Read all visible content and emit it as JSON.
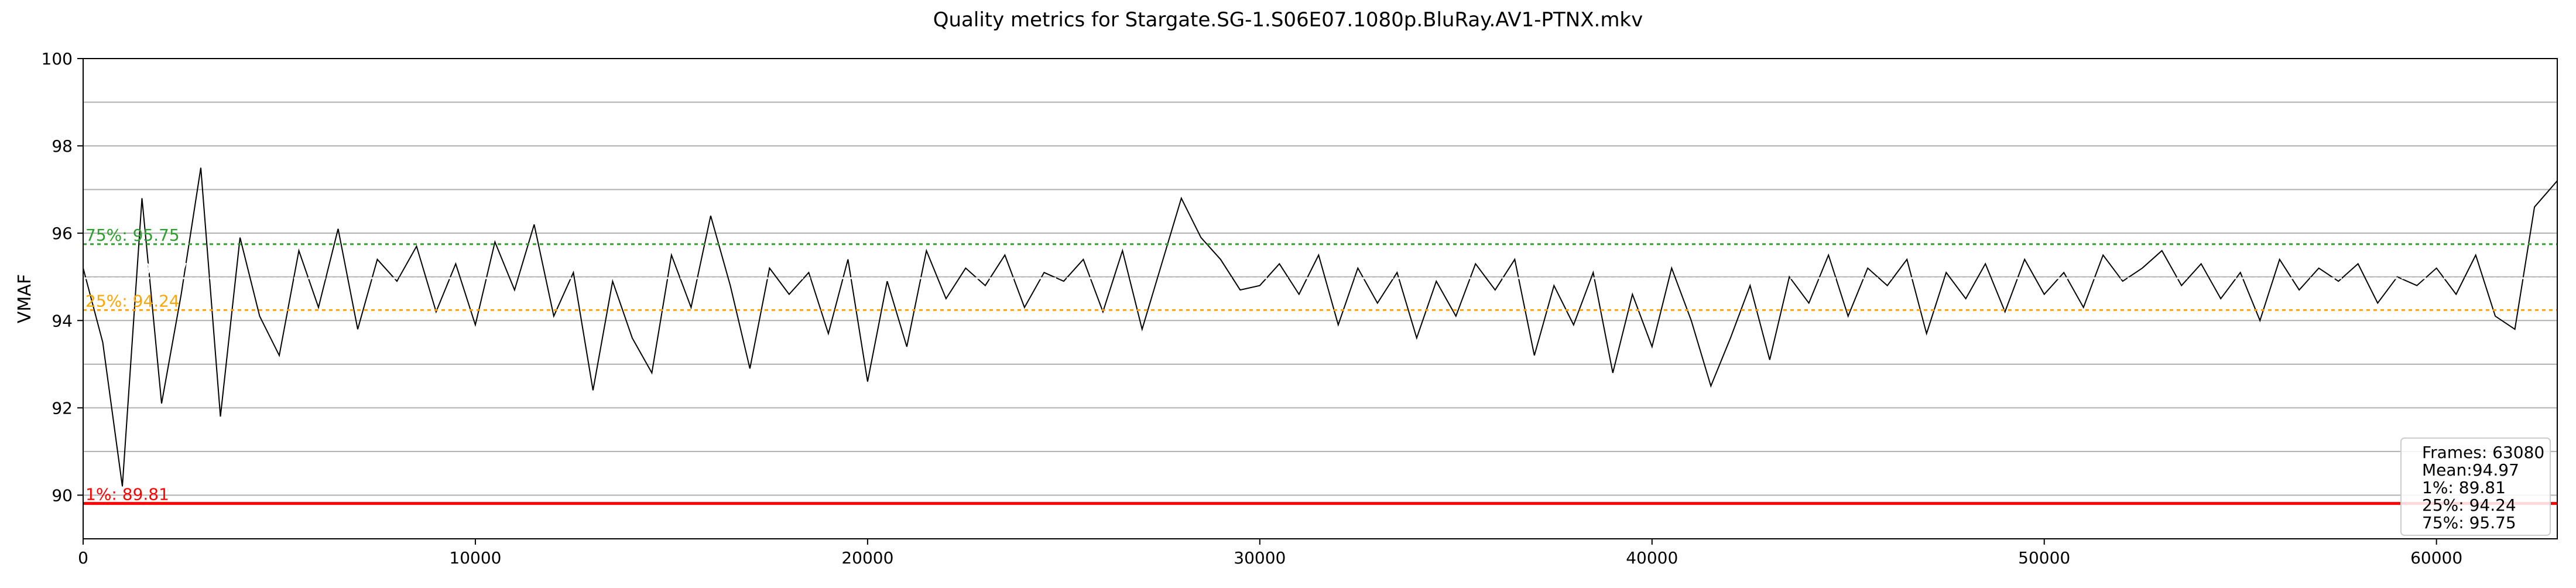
{
  "chart_data": {
    "type": "line",
    "title": "Quality metrics for Stargate.SG-1.S06E07.1080p.BluRay.AV1-PTNX.mkv",
    "xlabel": "",
    "ylabel": "VMAF",
    "xlim": [
      0,
      63080
    ],
    "ylim": [
      89,
      100
    ],
    "x_ticks": [
      0,
      10000,
      20000,
      30000,
      40000,
      50000,
      60000
    ],
    "y_ticks": [
      90,
      92,
      94,
      96,
      98,
      100
    ],
    "grid": true,
    "series": [
      {
        "color": "#000000",
        "approximate_mean": 94.97,
        "x": [
          0,
          500,
          1000,
          1500,
          2000,
          2500,
          3000,
          3500,
          4000,
          4500,
          5000,
          5500,
          6000,
          6500,
          7000,
          7500,
          8000,
          8500,
          9000,
          9500,
          10000,
          10500,
          11000,
          11500,
          12000,
          12500,
          13000,
          13500,
          14000,
          14500,
          15000,
          15500,
          16000,
          16500,
          17000,
          17500,
          18000,
          18500,
          19000,
          19500,
          20000,
          20500,
          21000,
          21500,
          22000,
          22500,
          23000,
          23500,
          24000,
          24500,
          25000,
          25500,
          26000,
          26500,
          27000,
          27500,
          28000,
          28500,
          29000,
          29500,
          30000,
          30500,
          31000,
          31500,
          32000,
          32500,
          33000,
          33500,
          34000,
          34500,
          35000,
          35500,
          36000,
          36500,
          37000,
          37500,
          38000,
          38500,
          39000,
          39500,
          40000,
          40500,
          41000,
          41500,
          42000,
          42500,
          43000,
          43500,
          44000,
          44500,
          45000,
          45500,
          46000,
          46500,
          47000,
          47500,
          48000,
          48500,
          49000,
          49500,
          50000,
          50500,
          51000,
          51500,
          52000,
          52500,
          53000,
          53500,
          54000,
          54500,
          55000,
          55500,
          56000,
          56500,
          57000,
          57500,
          58000,
          58500,
          59000,
          59500,
          60000,
          60500,
          61000,
          61500,
          62000,
          62500,
          63080
        ],
        "y": [
          95.2,
          93.5,
          90.2,
          96.8,
          92.1,
          94.6,
          97.5,
          91.8,
          95.9,
          94.1,
          93.2,
          95.6,
          94.3,
          96.1,
          93.8,
          95.4,
          94.9,
          95.7,
          94.2,
          95.3,
          93.9,
          95.8,
          94.7,
          96.2,
          94.1,
          95.1,
          92.4,
          94.9,
          93.6,
          92.8,
          95.5,
          94.3,
          96.4,
          94.8,
          92.9,
          95.2,
          94.6,
          95.1,
          93.7,
          95.4,
          92.6,
          94.9,
          93.4,
          95.6,
          94.5,
          95.2,
          94.8,
          95.5,
          94.3,
          95.1,
          94.9,
          95.4,
          94.2,
          95.6,
          93.8,
          95.3,
          96.8,
          95.9,
          95.4,
          94.7,
          94.8,
          95.3,
          94.6,
          95.5,
          93.9,
          95.2,
          94.4,
          95.1,
          93.6,
          94.9,
          94.1,
          95.3,
          94.7,
          95.4,
          93.2,
          94.8,
          93.9,
          95.1,
          92.8,
          94.6,
          93.4,
          95.2,
          94.0,
          92.5,
          93.6,
          94.8,
          93.1,
          95.0,
          94.4,
          95.5,
          94.1,
          95.2,
          94.8,
          95.4,
          93.7,
          95.1,
          94.5,
          95.3,
          94.2,
          95.4,
          94.6,
          95.1,
          94.3,
          95.5,
          94.9,
          95.2,
          95.6,
          94.8,
          95.3,
          94.5,
          95.1,
          94.0,
          95.4,
          94.7,
          95.2,
          94.9,
          95.3,
          94.4,
          95.0,
          94.8,
          95.2,
          94.6,
          95.5,
          94.1,
          93.8,
          96.6,
          97.2
        ]
      }
    ],
    "reference_lines": [
      {
        "label": "75%: 95.75",
        "value": 95.75,
        "color": "#2ca02c",
        "style": "dashed"
      },
      {
        "label": "Mean: 94.97",
        "value": 94.97,
        "color": "#ffffff",
        "style": "dashed"
      },
      {
        "label": "25%: 94.24",
        "value": 94.24,
        "color": "#ffa500",
        "style": "dashed"
      },
      {
        "label": "1%: 89.81",
        "value": 89.81,
        "color": "#ff0000",
        "style": "solid"
      }
    ],
    "legend": {
      "position": "bottom-right",
      "lines": [
        "Frames: 63080",
        "Mean:94.97",
        "1%: 89.81",
        "25%: 94.24",
        "75%: 95.75"
      ]
    }
  }
}
